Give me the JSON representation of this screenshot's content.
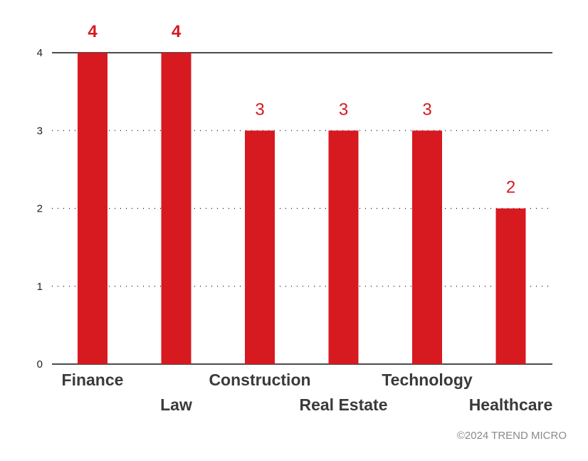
{
  "chart_data": {
    "type": "bar",
    "title": "",
    "xlabel": "",
    "ylabel": "",
    "categories": [
      "Finance",
      "Law",
      "Construction",
      "Real Estate",
      "Technology",
      "Healthcare"
    ],
    "values": [
      4,
      4,
      3,
      3,
      3,
      2
    ],
    "value_labels": [
      "4",
      "4",
      "3",
      "3",
      "3",
      "2"
    ],
    "ylim": [
      0,
      4
    ],
    "yticks": [
      "0",
      "1",
      "2",
      "3",
      "4"
    ],
    "grid": true,
    "bar_color": "#d71920"
  },
  "credit": "©2024 TREND MICRO"
}
